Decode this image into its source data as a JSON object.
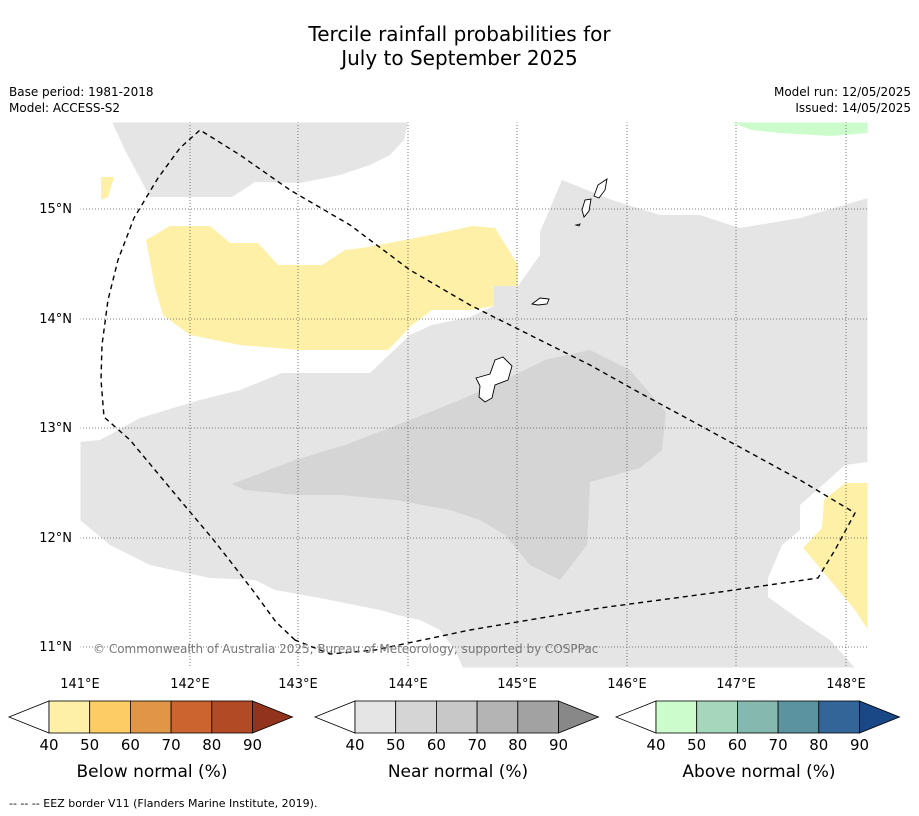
{
  "title": {
    "line1": "Tercile rainfall probabilities for",
    "line2": "July to September 2025"
  },
  "meta": {
    "base_period": "Base period: 1981-2018",
    "model": "Model: ACCESS-S2",
    "model_run": "Model run: 12/05/2025",
    "issued": "Issued: 14/05/2025"
  },
  "map": {
    "lon_labels": [
      "141°E",
      "142°E",
      "143°E",
      "144°E",
      "145°E",
      "146°E",
      "147°E",
      "148°E"
    ],
    "lat_labels": [
      "15°N",
      "14°N",
      "13°N",
      "12°N",
      "11°N"
    ],
    "copyright": "© Commonwealth of Australia 2025, Bureau of Meteorology, supported by COSPPac"
  },
  "colorbars": [
    {
      "label": "Below normal (%)",
      "ticks": [
        "40",
        "50",
        "60",
        "70",
        "80",
        "90"
      ],
      "colors": [
        "#fef0a6",
        "#fdcc65",
        "#e19647",
        "#cc6430",
        "#b34a26",
        "#92331d"
      ]
    },
    {
      "label": "Near normal (%)",
      "ticks": [
        "40",
        "50",
        "60",
        "70",
        "80",
        "90"
      ],
      "colors": [
        "#e5e5e5",
        "#d5d5d5",
        "#c8c8c8",
        "#b4b4b4",
        "#a2a2a2",
        "#888888"
      ]
    },
    {
      "label": "Above normal (%)",
      "ticks": [
        "40",
        "50",
        "60",
        "70",
        "80",
        "90"
      ],
      "colors": [
        "#ccfccc",
        "#a6d6bc",
        "#85b8ae",
        "#5b93a0",
        "#336599",
        "#1a4785"
      ]
    }
  ],
  "footnote": "--  --  -- EEZ border V11 (Flanders Marine Institute, 2019)."
}
